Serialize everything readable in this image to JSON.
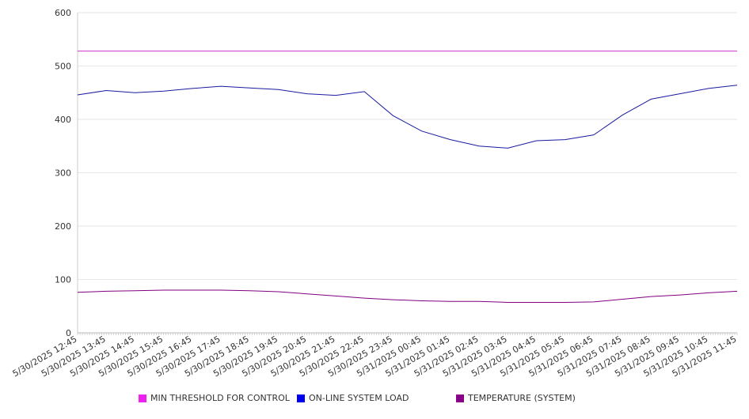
{
  "chart_data": {
    "type": "line",
    "title": "",
    "xlabel": "",
    "ylabel": "",
    "ylim": [
      0,
      600
    ],
    "yticks": [
      "0",
      "100",
      "200",
      "300",
      "400",
      "500",
      "600"
    ],
    "grid": true,
    "legend_position": "bottom",
    "x": [
      "5/30/2025 12:45",
      "5/30/2025 13:45",
      "5/30/2025 14:45",
      "5/30/2025 15:45",
      "5/30/2025 16:45",
      "5/30/2025 17:45",
      "5/30/2025 18:45",
      "5/30/2025 19:45",
      "5/30/2025 20:45",
      "5/30/2025 21:45",
      "5/30/2025 22:45",
      "5/30/2025 23:45",
      "5/31/2025 00:45",
      "5/31/2025 01:45",
      "5/31/2025 02:45",
      "5/31/2025 03:45",
      "5/31/2025 04:45",
      "5/31/2025 05:45",
      "5/31/2025 06:45",
      "5/31/2025 07:45",
      "5/31/2025 08:45",
      "5/31/2025 09:45",
      "5/31/2025 10:45",
      "5/31/2025 11:45"
    ],
    "series": [
      {
        "name": "MIN THRESHOLD FOR CONTROL",
        "color": "#cc33cc",
        "swatch": "#ee22ee",
        "values": [
          528,
          528,
          528,
          528,
          528,
          528,
          528,
          528,
          528,
          528,
          528,
          528,
          528,
          528,
          528,
          528,
          528,
          528,
          528,
          528,
          528,
          528,
          528,
          528
        ]
      },
      {
        "name": "ON-LINE SYSTEM LOAD",
        "color": "#1a1aa0",
        "swatch": "#0000ee",
        "values": [
          446,
          454,
          450,
          453,
          458,
          462,
          459,
          456,
          448,
          445,
          452,
          407,
          378,
          362,
          350,
          346,
          360,
          362,
          371,
          408,
          438,
          448,
          458,
          464
        ]
      },
      {
        "name": "TEMPERATURE (SYSTEM)",
        "color": "#800080",
        "swatch": "#880088",
        "values": [
          76,
          78,
          79,
          80,
          80,
          80,
          79,
          77,
          73,
          69,
          65,
          62,
          60,
          59,
          59,
          57,
          57,
          57,
          58,
          63,
          68,
          71,
          75,
          78
        ]
      }
    ]
  }
}
